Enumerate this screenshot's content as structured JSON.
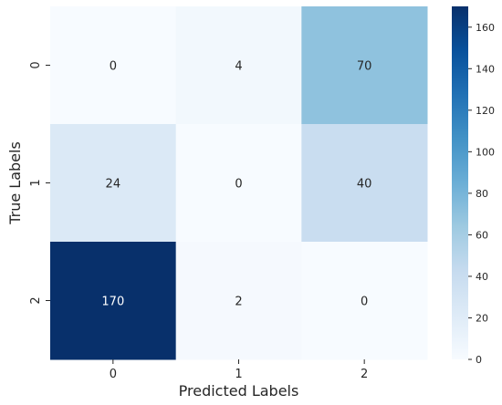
{
  "chart_data": {
    "type": "heatmap",
    "xlabel": "Predicted Labels",
    "ylabel": "True Labels",
    "x_categories": [
      "0",
      "1",
      "2"
    ],
    "y_categories": [
      "0",
      "1",
      "2"
    ],
    "values": [
      [
        0,
        4,
        70
      ],
      [
        24,
        0,
        40
      ],
      [
        170,
        2,
        0
      ]
    ],
    "colorbar": {
      "colormap": "Blues",
      "range": [
        0,
        170
      ],
      "ticks": [
        0,
        20,
        40,
        60,
        80,
        100,
        120,
        140,
        160
      ]
    },
    "annotations": true,
    "grid": false
  }
}
